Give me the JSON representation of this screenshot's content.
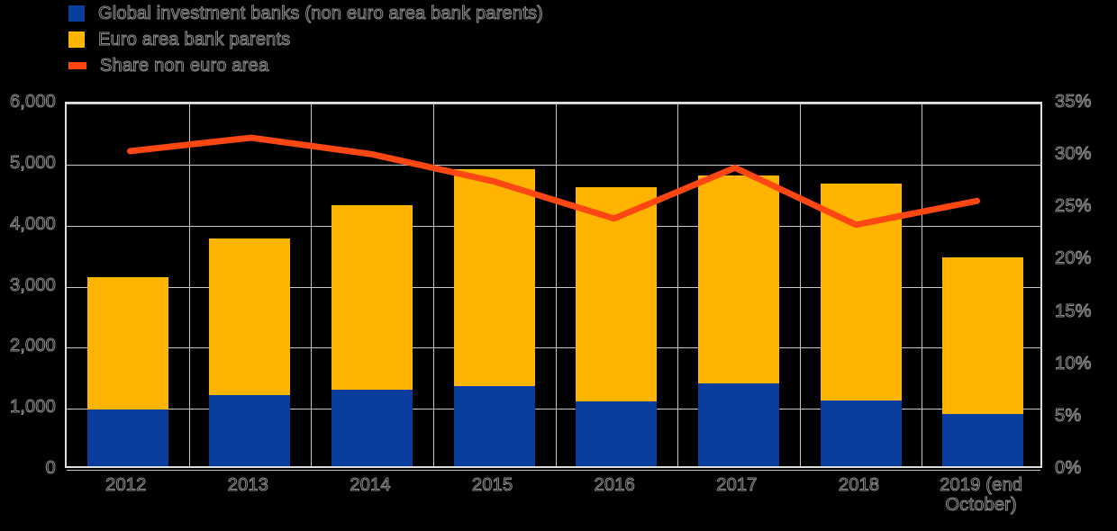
{
  "colors": {
    "background": "#000000",
    "gridline": "#c7c7c7",
    "plot_border": "#dedede",
    "text_outline": "#8f8f8f",
    "bar_blue": "#0b3d9f",
    "bar_yellow": "#ffb400",
    "line_orange": "#ff4713"
  },
  "legend": {
    "items": [
      {
        "label": "Global investment banks (non euro area bank parents)",
        "marker": "square",
        "color": "#0b3d9f"
      },
      {
        "label": "Euro area bank parents",
        "marker": "square",
        "color": "#ffb400"
      },
      {
        "label": "Share non euro area",
        "marker": "line",
        "color": "#ff4713"
      }
    ]
  },
  "chart_data": {
    "type": "bar",
    "stacked": true,
    "grid": true,
    "legend_position": "top-left",
    "categories": [
      "2012",
      "2013",
      "2014",
      "2015",
      "2016",
      "2017",
      "2018",
      "2019 (end October)"
    ],
    "series": [
      {
        "name": "Global investment banks (non euro area bank parents)",
        "color": "#0b3d9f",
        "values": [
          930,
          1170,
          1250,
          1310,
          1060,
          1350,
          1070,
          850
        ]
      },
      {
        "name": "Euro area bank parents",
        "color": "#ffb400",
        "values": [
          2170,
          2560,
          3030,
          3560,
          3510,
          3410,
          3560,
          2570
        ]
      }
    ],
    "totals": [
      3100,
      3730,
      4280,
      4870,
      4570,
      4760,
      4630,
      3420
    ],
    "line": {
      "name": "Share non euro area",
      "color": "#ff4713",
      "axis": "right",
      "values_pct": [
        30.4,
        31.7,
        30.1,
        27.5,
        23.9,
        28.8,
        23.3,
        25.6
      ]
    },
    "left_axis": {
      "min": 0,
      "max": 6000,
      "tick_values": [
        6000,
        5000,
        4000,
        3000,
        2000,
        1000,
        0
      ],
      "tick_labels": [
        "6,000",
        "5,000",
        "4,000",
        "3,000",
        "2,000",
        "1,000",
        "0"
      ]
    },
    "right_axis": {
      "min": 0,
      "max": 35,
      "tick_values": [
        35,
        30,
        25,
        20,
        15,
        10,
        5,
        0
      ],
      "tick_labels": [
        "35%",
        "30%",
        "25%",
        "20%",
        "15%",
        "10%",
        "5%",
        "0%"
      ]
    }
  }
}
